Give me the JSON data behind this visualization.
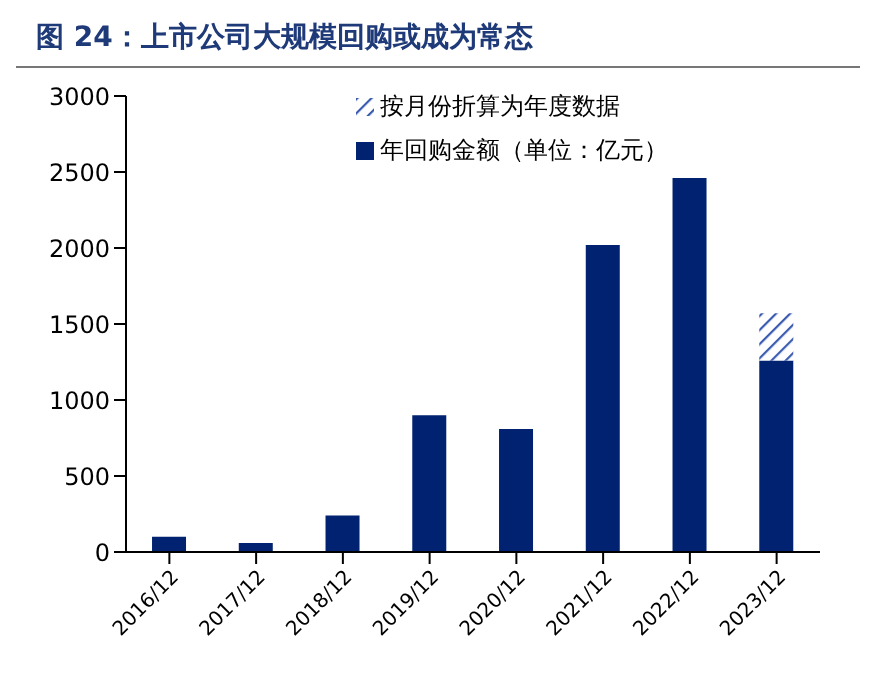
{
  "chart_data": {
    "type": "bar",
    "title": "图 24：上市公司大规模回购或成为常态",
    "categories": [
      "2016/12",
      "2017/12",
      "2018/12",
      "2019/12",
      "2020/12",
      "2021/12",
      "2022/12",
      "2023/12"
    ],
    "stacked": true,
    "series": [
      {
        "name": "年回购金额（单位：亿元）",
        "color": "#002270",
        "values": [
          100,
          60,
          240,
          900,
          810,
          2020,
          2460,
          1260
        ]
      },
      {
        "name": "按月份折算为年度数据",
        "color": "#3a5bb0",
        "values": [
          null,
          null,
          null,
          null,
          null,
          null,
          null,
          310
        ]
      }
    ],
    "ylim": [
      0,
      3000
    ],
    "yticks": [
      0,
      500,
      1000,
      1500,
      2000,
      2500,
      3000
    ],
    "grid": false,
    "legend": "top"
  }
}
